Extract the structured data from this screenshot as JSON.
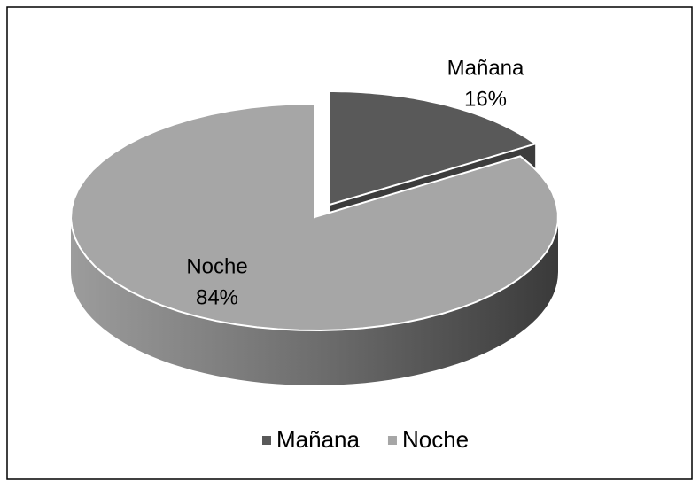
{
  "chart_data": {
    "type": "pie3d",
    "categories": [
      "Mañana",
      "Noche"
    ],
    "values": [
      16,
      84
    ],
    "value_labels": [
      "16%",
      "84%"
    ],
    "colors": [
      "#595959",
      "#a6a6a6"
    ],
    "legend": "bottom"
  }
}
